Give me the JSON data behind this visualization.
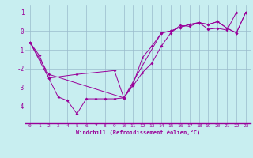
{
  "bg_color": "#c8eef0",
  "line_color": "#990099",
  "grid_color": "#99bbcc",
  "xlim": [
    -0.5,
    23.5
  ],
  "ylim": [
    -4.9,
    1.4
  ],
  "yticks": [
    1,
    0,
    -1,
    -2,
    -3,
    -4
  ],
  "xticks": [
    0,
    1,
    2,
    3,
    4,
    5,
    6,
    7,
    8,
    9,
    10,
    11,
    12,
    13,
    14,
    15,
    16,
    17,
    18,
    19,
    20,
    21,
    22,
    23
  ],
  "xlabel": "Windchill (Refroidissement éolien,°C)",
  "series1_x": [
    0,
    1,
    2,
    3,
    4,
    5,
    6,
    7,
    8,
    9,
    10,
    11,
    12,
    13,
    14,
    15,
    16,
    17,
    18,
    19,
    20,
    21,
    22
  ],
  "series1_y": [
    -0.6,
    -1.3,
    -2.5,
    -3.5,
    -3.7,
    -4.4,
    -3.6,
    -3.6,
    -3.6,
    -3.6,
    -3.55,
    -2.9,
    -2.2,
    -1.7,
    -0.8,
    -0.1,
    0.3,
    0.25,
    0.45,
    0.1,
    0.15,
    0.05,
    1.0
  ],
  "series2_x": [
    0,
    2,
    5,
    9,
    10,
    11,
    12,
    13,
    14,
    15,
    16,
    17,
    18,
    19,
    20,
    21,
    22,
    23
  ],
  "series2_y": [
    -0.6,
    -2.5,
    -2.3,
    -2.1,
    -3.55,
    -2.8,
    -1.4,
    -0.8,
    -0.1,
    0.0,
    0.2,
    0.35,
    0.45,
    0.35,
    0.5,
    0.15,
    -0.1,
    1.0
  ],
  "series3_x": [
    0,
    2,
    10,
    14,
    15,
    16,
    17,
    18,
    19,
    20,
    21,
    22,
    23
  ],
  "series3_y": [
    -0.6,
    -2.3,
    -3.55,
    -0.1,
    0.0,
    0.2,
    0.35,
    0.45,
    0.35,
    0.5,
    0.15,
    -0.1,
    1.0
  ]
}
